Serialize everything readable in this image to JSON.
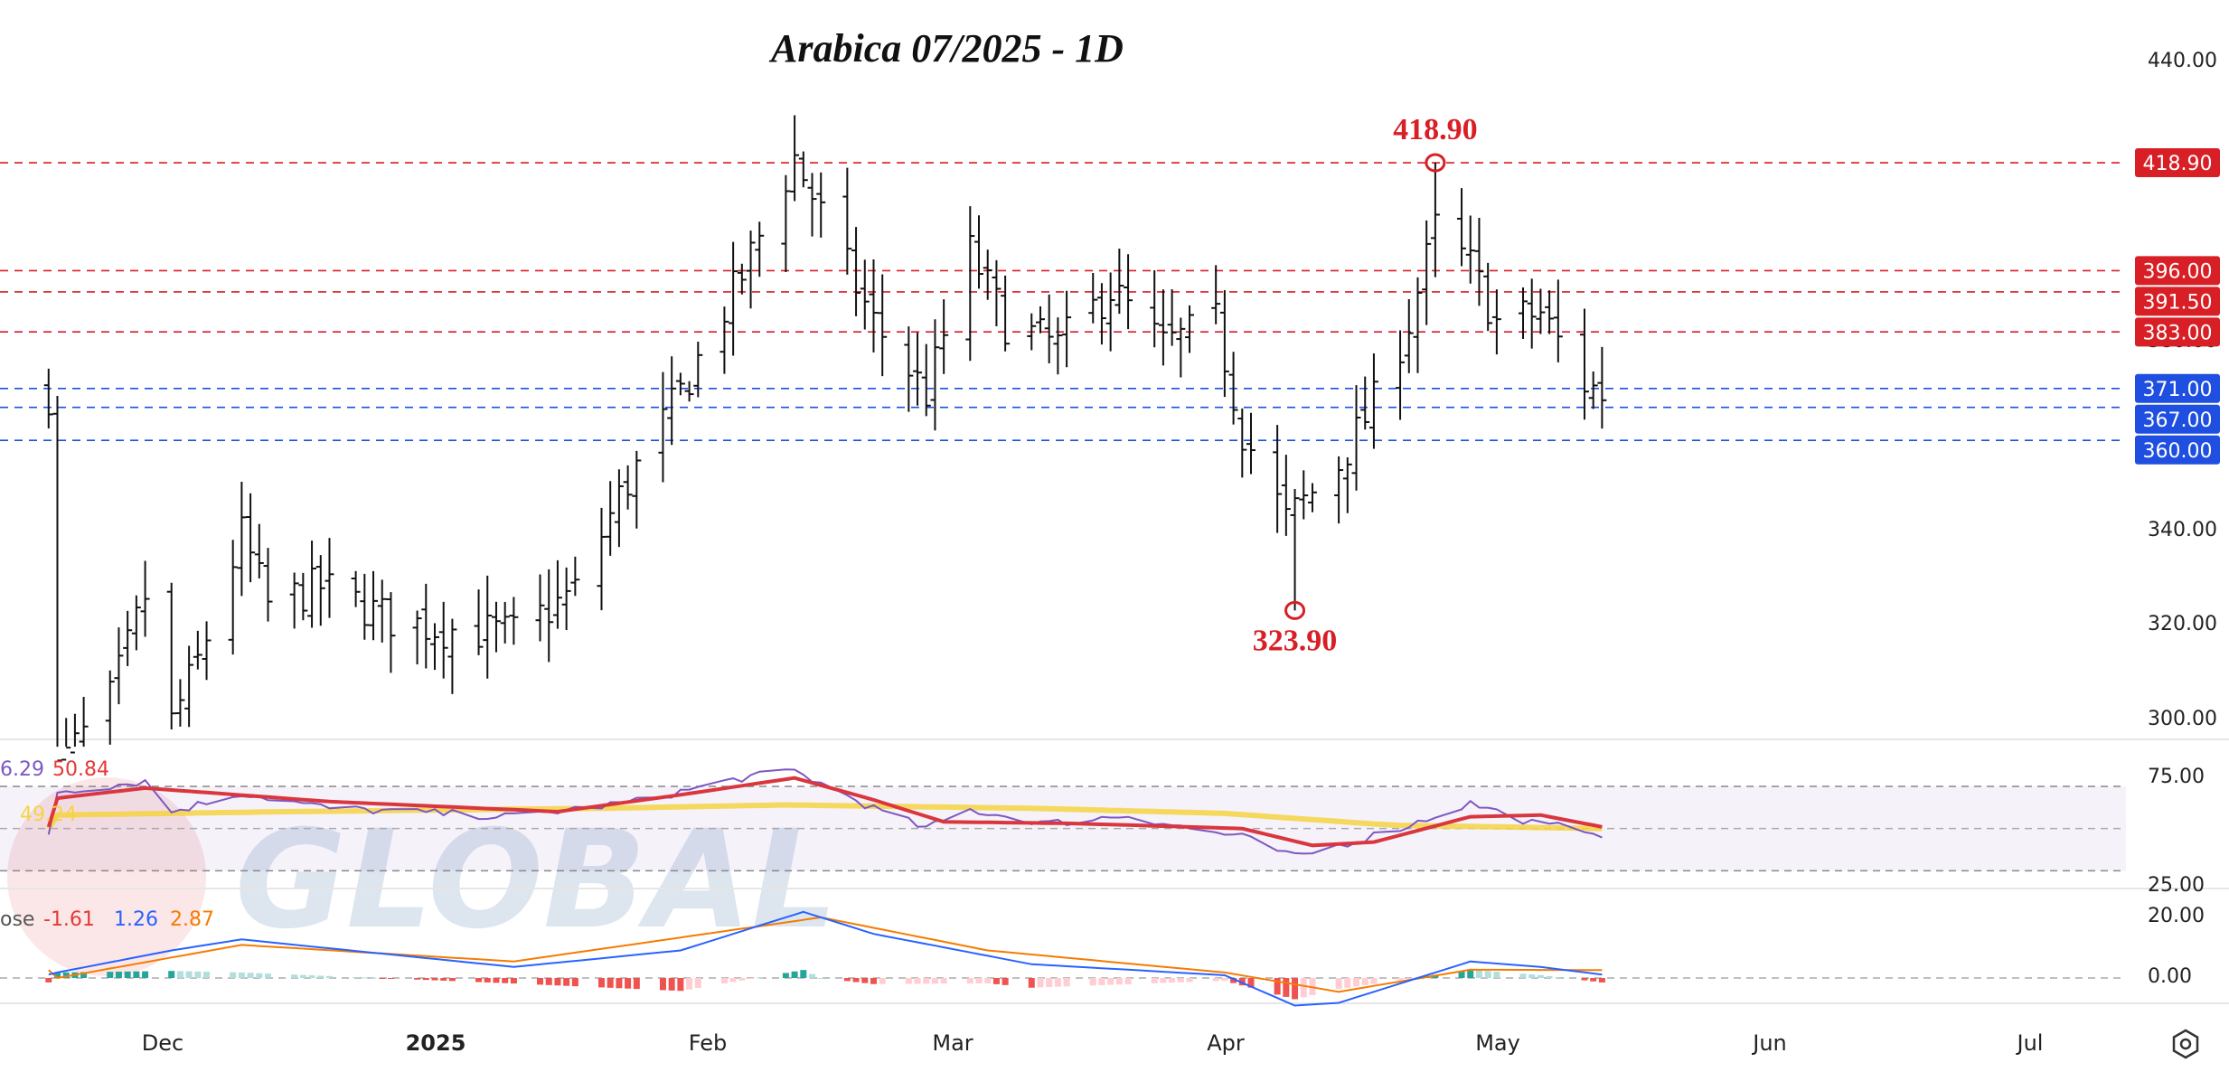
{
  "chart_data": {
    "type": "ohlc",
    "title": "Arabica 07/2025 - 1D",
    "price_axis": {
      "ylim": [
        295,
        445
      ],
      "ticks": [
        "440.00",
        "380.00",
        "340.00",
        "320.00",
        "300.00"
      ]
    },
    "x_axis": {
      "labels": [
        "Dec",
        "2025",
        "Feb",
        "Mar",
        "Apr",
        "May",
        "Jun",
        "Jul"
      ],
      "bold": [
        "2025"
      ]
    },
    "levels": [
      {
        "value": 418.9,
        "label": "418.90",
        "color": "#d81f26",
        "kind": "resistance"
      },
      {
        "value": 396.0,
        "label": "396.00",
        "color": "#d81f26",
        "kind": "resistance"
      },
      {
        "value": 391.5,
        "label": "391.50",
        "color": "#d81f26",
        "kind": "resistance"
      },
      {
        "value": 383.0,
        "label": "383.00",
        "color": "#d81f26",
        "kind": "resistance"
      },
      {
        "value": 371.0,
        "label": "371.00",
        "color": "#1f4fe0",
        "kind": "support"
      },
      {
        "value": 367.0,
        "label": "367.00",
        "color": "#1f4fe0",
        "kind": "support"
      },
      {
        "value": 360.0,
        "label": "360.00",
        "color": "#1f4fe0",
        "kind": "support"
      }
    ],
    "extremes": [
      {
        "label": "418.90",
        "value": 418.9,
        "date": "2025-04-25",
        "type": "high"
      },
      {
        "label": "323.90",
        "value": 323.9,
        "date": "2025-04-09",
        "type": "low"
      }
    ],
    "ohlc_keyframes": [
      {
        "date": "2024-11-19",
        "close": 290
      },
      {
        "date": "2024-11-25",
        "close": 305
      },
      {
        "date": "2024-11-29",
        "close": 327
      },
      {
        "date": "2024-12-02",
        "close": 300
      },
      {
        "date": "2024-12-05",
        "close": 313
      },
      {
        "date": "2024-12-10",
        "close": 340
      },
      {
        "date": "2024-12-13",
        "close": 325
      },
      {
        "date": "2024-12-19",
        "close": 329
      },
      {
        "date": "2024-12-27",
        "close": 322
      },
      {
        "date": "2025-01-02",
        "close": 320
      },
      {
        "date": "2025-01-10",
        "close": 319
      },
      {
        "date": "2025-01-17",
        "close": 328
      },
      {
        "date": "2025-01-22",
        "close": 348
      },
      {
        "date": "2025-01-29",
        "close": 370
      },
      {
        "date": "2025-02-05",
        "close": 395
      },
      {
        "date": "2025-02-11",
        "close": 420
      },
      {
        "date": "2025-02-14",
        "close": 408
      },
      {
        "date": "2025-02-20",
        "close": 385
      },
      {
        "date": "2025-02-26",
        "close": 370
      },
      {
        "date": "2025-03-03",
        "close": 400
      },
      {
        "date": "2025-03-07",
        "close": 385
      },
      {
        "date": "2025-03-13",
        "close": 380
      },
      {
        "date": "2025-03-19",
        "close": 392
      },
      {
        "date": "2025-03-25",
        "close": 380
      },
      {
        "date": "2025-03-31",
        "close": 385
      },
      {
        "date": "2025-04-03",
        "close": 362
      },
      {
        "date": "2025-04-08",
        "close": 343
      },
      {
        "date": "2025-04-14",
        "close": 355
      },
      {
        "date": "2025-04-18",
        "close": 368
      },
      {
        "date": "2025-04-22",
        "close": 385
      },
      {
        "date": "2025-04-25",
        "close": 405
      },
      {
        "date": "2025-04-29",
        "close": 397
      },
      {
        "date": "2025-05-02",
        "close": 385
      },
      {
        "date": "2025-05-07",
        "close": 387
      },
      {
        "date": "2025-05-12",
        "close": 372
      },
      {
        "date": "2025-05-14",
        "close": 370
      }
    ],
    "rsi": {
      "labels": [
        "6.29",
        "50.84",
        "49.24"
      ],
      "colors": [
        "#7e57c2",
        "#e53935",
        "#f5d442"
      ],
      "ticks": [
        "75.00",
        "25.00"
      ],
      "bands": [
        75,
        50,
        25
      ],
      "rsi_keyframes": [
        {
          "date": "2024-11-19",
          "rsi": 72
        },
        {
          "date": "2024-11-29",
          "rsi": 78
        },
        {
          "date": "2024-12-02",
          "rsi": 60
        },
        {
          "date": "2024-12-10",
          "rsi": 71
        },
        {
          "date": "2024-12-20",
          "rsi": 62
        },
        {
          "date": "2025-01-10",
          "rsi": 57
        },
        {
          "date": "2025-01-24",
          "rsi": 66
        },
        {
          "date": "2025-02-05",
          "rsi": 80
        },
        {
          "date": "2025-02-11",
          "rsi": 84
        },
        {
          "date": "2025-02-20",
          "rsi": 62
        },
        {
          "date": "2025-02-26",
          "rsi": 50
        },
        {
          "date": "2025-03-03",
          "rsi": 61
        },
        {
          "date": "2025-03-12",
          "rsi": 53
        },
        {
          "date": "2025-03-21",
          "rsi": 58
        },
        {
          "date": "2025-03-28",
          "rsi": 50
        },
        {
          "date": "2025-04-03",
          "rsi": 45
        },
        {
          "date": "2025-04-09",
          "rsi": 33
        },
        {
          "date": "2025-04-14",
          "rsi": 40
        },
        {
          "date": "2025-04-22",
          "rsi": 52
        },
        {
          "date": "2025-04-29",
          "rsi": 65
        },
        {
          "date": "2025-05-07",
          "rsi": 52
        },
        {
          "date": "2025-05-12",
          "rsi": 50
        },
        {
          "date": "2025-05-14",
          "rsi": 47
        }
      ],
      "ma_keyframes": [
        {
          "date": "2024-11-19",
          "ma": 68
        },
        {
          "date": "2024-11-29",
          "ma": 74
        },
        {
          "date": "2024-12-20",
          "ma": 66
        },
        {
          "date": "2025-01-15",
          "ma": 60
        },
        {
          "date": "2025-01-29",
          "ma": 70
        },
        {
          "date": "2025-02-11",
          "ma": 80
        },
        {
          "date": "2025-02-20",
          "ma": 67
        },
        {
          "date": "2025-02-28",
          "ma": 54
        },
        {
          "date": "2025-03-15",
          "ma": 53
        },
        {
          "date": "2025-04-03",
          "ma": 50
        },
        {
          "date": "2025-04-11",
          "ma": 40
        },
        {
          "date": "2025-04-18",
          "ma": 42
        },
        {
          "date": "2025-04-29",
          "ma": 57
        },
        {
          "date": "2025-05-07",
          "ma": 58
        },
        {
          "date": "2025-05-14",
          "ma": 51
        }
      ],
      "smooth_keyframes": [
        {
          "date": "2024-11-19",
          "sm": 58
        },
        {
          "date": "2024-12-15",
          "sm": 60
        },
        {
          "date": "2025-01-20",
          "sm": 62
        },
        {
          "date": "2025-02-10",
          "sm": 64
        },
        {
          "date": "2025-03-10",
          "sm": 62
        },
        {
          "date": "2025-04-01",
          "sm": 59
        },
        {
          "date": "2025-04-20",
          "sm": 52
        },
        {
          "date": "2025-05-14",
          "sm": 50
        }
      ]
    },
    "macd": {
      "labels": [
        "ose",
        "-1.61",
        "1.26",
        "2.87"
      ],
      "colors": [
        "#555",
        "#e53935",
        "#2962ff",
        "#f57c00"
      ],
      "ticks": [
        "20.00",
        "0.00"
      ],
      "macd_keyframes": [
        {
          "date": "2024-11-19",
          "macd": 2
        },
        {
          "date": "2024-12-02",
          "macd": 10
        },
        {
          "date": "2024-12-10",
          "macd": 14
        },
        {
          "date": "2025-01-10",
          "macd": 4
        },
        {
          "date": "2025-01-29",
          "macd": 10
        },
        {
          "date": "2025-02-12",
          "macd": 24
        },
        {
          "date": "2025-02-20",
          "macd": 16
        },
        {
          "date": "2025-03-10",
          "macd": 5
        },
        {
          "date": "2025-04-01",
          "macd": 1
        },
        {
          "date": "2025-04-09",
          "macd": -10
        },
        {
          "date": "2025-04-14",
          "macd": -9
        },
        {
          "date": "2025-04-25",
          "macd": 2
        },
        {
          "date": "2025-04-29",
          "macd": 6
        },
        {
          "date": "2025-05-07",
          "macd": 4
        },
        {
          "date": "2025-05-14",
          "macd": 1.26
        }
      ],
      "signal_keyframes": [
        {
          "date": "2024-11-19",
          "sig": 0
        },
        {
          "date": "2024-12-10",
          "sig": 12
        },
        {
          "date": "2025-01-10",
          "sig": 6
        },
        {
          "date": "2025-02-14",
          "sig": 22
        },
        {
          "date": "2025-03-05",
          "sig": 10
        },
        {
          "date": "2025-04-01",
          "sig": 2
        },
        {
          "date": "2025-04-14",
          "sig": -5
        },
        {
          "date": "2025-04-29",
          "sig": 3
        },
        {
          "date": "2025-05-14",
          "sig": 2.87
        }
      ]
    }
  },
  "watermark": {
    "text": "GLOBAL"
  },
  "settings": {
    "icon": "gear-icon"
  }
}
